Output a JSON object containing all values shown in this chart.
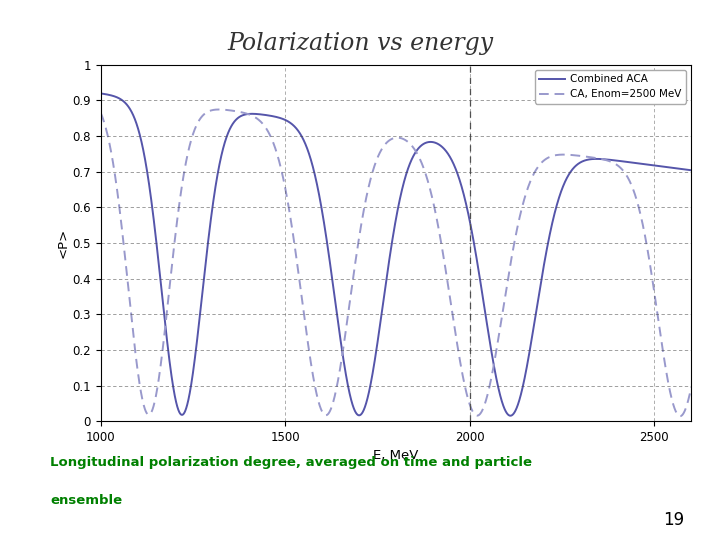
{
  "title": "Polarization vs energy",
  "title_color": "#333333",
  "xlabel": "E, MeV",
  "ylabel": "<P>",
  "xlim": [
    1000,
    2600
  ],
  "ylim": [
    0,
    1.0
  ],
  "yticks": [
    0,
    0.1,
    0.2,
    0.3,
    0.4,
    0.5,
    0.6,
    0.7,
    0.8,
    0.9,
    1
  ],
  "xtick_labels": [
    "1000",
    "1500",
    "2000",
    "2500"
  ],
  "xticks": [
    1000,
    1500,
    2000,
    2500
  ],
  "legend_labels": [
    "Combined ACA",
    "CA, Enom=2500 MeV"
  ],
  "line_color": "#5555AA",
  "dashed_line_color": "#9999CC",
  "subtitle_line1": "Longitudinal polarization degree, averaged on time and particle",
  "subtitle_line2": "ensemble",
  "subtitle_color": "#008000",
  "page_number": "19",
  "grid_color": "#444444",
  "background_color": "#ffffff",
  "vline_x": 2000
}
